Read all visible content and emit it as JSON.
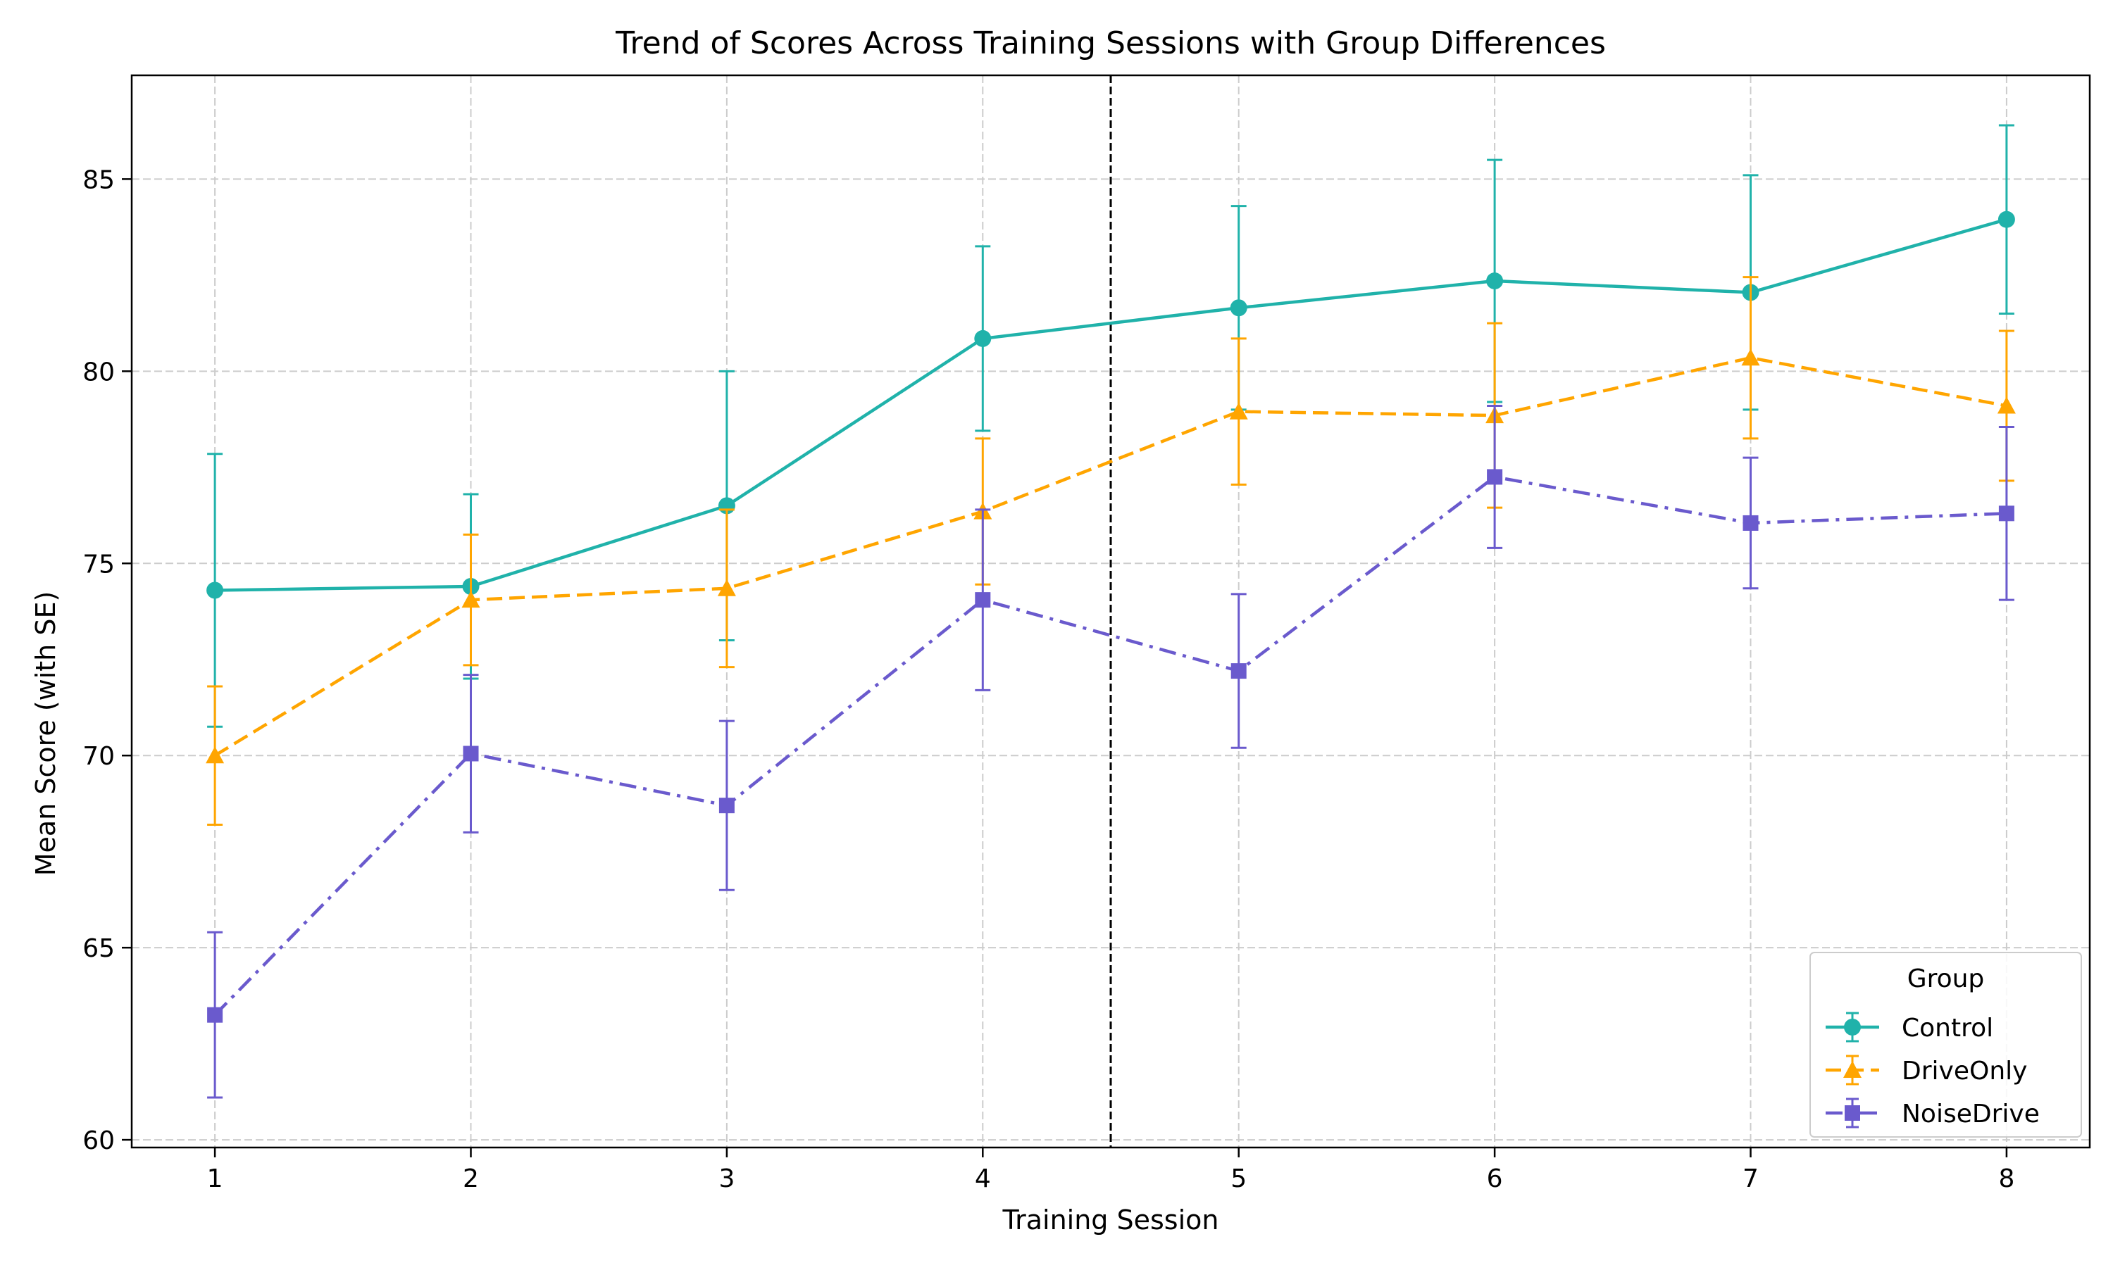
{
  "chart_data": {
    "type": "line",
    "title": "Trend of Scores Across Training Sessions with Group Differences",
    "xlabel": "Training Session",
    "ylabel": "Mean Score (with SE)",
    "x": [
      1,
      2,
      3,
      4,
      5,
      6,
      7,
      8
    ],
    "xlim": [
      0.675,
      8.325
    ],
    "ylim": [
      59.8,
      87.7
    ],
    "xticks": [
      1,
      2,
      3,
      4,
      5,
      6,
      7,
      8
    ],
    "yticks": [
      60,
      65,
      70,
      75,
      80,
      85
    ],
    "grid": true,
    "reference_line": {
      "x": 4.5,
      "style": "dashed",
      "color": "#000000"
    },
    "legend": {
      "title": "Group",
      "placement": "bottom-right"
    },
    "series": [
      {
        "name": "Control",
        "color": "#20b2aa",
        "line_style": "solid",
        "marker": "circle",
        "values": [
          74.3,
          74.4,
          76.5,
          80.85,
          81.65,
          82.35,
          82.05,
          83.95
        ],
        "se": [
          3.55,
          2.4,
          3.5,
          2.4,
          2.65,
          3.15,
          3.05,
          2.45
        ]
      },
      {
        "name": "DriveOnly",
        "color": "#ffa500",
        "line_style": "dashed",
        "marker": "triangle",
        "values": [
          70.0,
          74.05,
          74.35,
          76.35,
          78.95,
          78.85,
          80.35,
          79.1
        ],
        "se": [
          1.8,
          1.7,
          2.05,
          1.9,
          1.9,
          2.4,
          2.1,
          1.95
        ]
      },
      {
        "name": "NoiseDrive",
        "color": "#6a5acd",
        "line_style": "dashdot",
        "marker": "square",
        "values": [
          63.25,
          70.05,
          68.7,
          74.05,
          72.2,
          77.25,
          76.05,
          76.3
        ],
        "se": [
          2.15,
          2.05,
          2.2,
          2.35,
          2.0,
          1.85,
          1.7,
          2.25
        ]
      }
    ]
  }
}
